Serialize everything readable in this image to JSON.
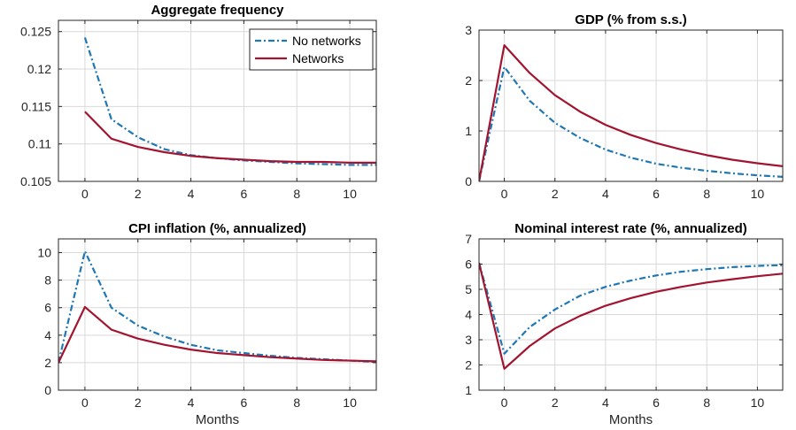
{
  "colors": {
    "no_networks": "#1f77b4",
    "networks": "#a2142f"
  },
  "legend": {
    "placement": "top-right of first panel",
    "entries": [
      {
        "label": "No networks",
        "color": "#1f77b4",
        "dash": "dash-dot"
      },
      {
        "label": "Networks",
        "color": "#a2142f",
        "dash": "solid"
      }
    ]
  },
  "chart_data": [
    {
      "type": "line",
      "title": "Aggregate frequency",
      "xlabel": "",
      "ylabel": "",
      "xlim": [
        -1,
        11
      ],
      "ylim": [
        0.105,
        0.1265
      ],
      "xticks": [
        0,
        2,
        4,
        6,
        8,
        10
      ],
      "yticks": [
        0.105,
        0.11,
        0.115,
        0.12,
        0.125
      ],
      "ytick_labels": [
        "0.105",
        "0.11",
        "0.115",
        "0.12",
        "0.125"
      ],
      "grid": true,
      "x": [
        0,
        1,
        2,
        3,
        4,
        5,
        6,
        7,
        8,
        9,
        10,
        11
      ],
      "series": [
        {
          "name": "No networks",
          "values": [
            0.1242,
            0.1133,
            0.1109,
            0.1093,
            0.1085,
            0.1081,
            0.1078,
            0.1076,
            0.1074,
            0.1073,
            0.1072,
            0.1072
          ]
        },
        {
          "name": "Networks",
          "values": [
            0.1143,
            0.1107,
            0.1096,
            0.1089,
            0.1084,
            0.1081,
            0.1079,
            0.1077,
            0.1076,
            0.1076,
            0.1075,
            0.1075
          ]
        }
      ]
    },
    {
      "type": "line",
      "title": "GDP (% from s.s.)",
      "xlabel": "",
      "ylabel": "",
      "xlim": [
        -1,
        11
      ],
      "ylim": [
        0,
        3
      ],
      "xticks": [
        0,
        2,
        4,
        6,
        8,
        10
      ],
      "yticks": [
        0,
        1,
        2,
        3
      ],
      "ytick_labels": [
        "0",
        "1",
        "2",
        "3"
      ],
      "grid": true,
      "x": [
        -1,
        0,
        1,
        2,
        3,
        4,
        5,
        6,
        7,
        8,
        9,
        10,
        11
      ],
      "series": [
        {
          "name": "No networks",
          "values": [
            0,
            2.27,
            1.6,
            1.16,
            0.86,
            0.63,
            0.47,
            0.35,
            0.27,
            0.21,
            0.16,
            0.12,
            0.09
          ]
        },
        {
          "name": "Networks",
          "values": [
            0,
            2.7,
            2.15,
            1.71,
            1.38,
            1.12,
            0.92,
            0.76,
            0.63,
            0.52,
            0.43,
            0.36,
            0.3
          ]
        }
      ]
    },
    {
      "type": "line",
      "title": "CPI inflation (%, annualized)",
      "xlabel": "Months",
      "ylabel": "",
      "xlim": [
        -1,
        11
      ],
      "ylim": [
        0,
        11
      ],
      "xticks": [
        0,
        2,
        4,
        6,
        8,
        10
      ],
      "yticks": [
        0,
        2,
        4,
        6,
        8,
        10
      ],
      "ytick_labels": [
        "0",
        "2",
        "4",
        "6",
        "8",
        "10"
      ],
      "grid": true,
      "x": [
        -1,
        0,
        1,
        2,
        3,
        4,
        5,
        6,
        7,
        8,
        9,
        10,
        11
      ],
      "series": [
        {
          "name": "No networks",
          "values": [
            2.0,
            10.1,
            6.0,
            4.7,
            3.9,
            3.3,
            2.9,
            2.7,
            2.5,
            2.35,
            2.25,
            2.15,
            2.05
          ]
        },
        {
          "name": "Networks",
          "values": [
            2.0,
            6.05,
            4.4,
            3.75,
            3.3,
            2.95,
            2.7,
            2.55,
            2.4,
            2.3,
            2.2,
            2.15,
            2.1
          ]
        }
      ]
    },
    {
      "type": "line",
      "title": "Nominal interest rate (%, annualized)",
      "xlabel": "Months",
      "ylabel": "",
      "xlim": [
        -1,
        11
      ],
      "ylim": [
        1,
        7
      ],
      "xticks": [
        0,
        2,
        4,
        6,
        8,
        10
      ],
      "yticks": [
        1,
        2,
        3,
        4,
        5,
        6,
        7
      ],
      "ytick_labels": [
        "1",
        "2",
        "3",
        "4",
        "5",
        "6",
        "7"
      ],
      "grid": true,
      "x": [
        -1,
        0,
        1,
        2,
        3,
        4,
        5,
        6,
        7,
        8,
        9,
        10,
        11
      ],
      "series": [
        {
          "name": "No networks",
          "values": [
            6.05,
            2.45,
            3.5,
            4.2,
            4.75,
            5.1,
            5.35,
            5.55,
            5.7,
            5.8,
            5.88,
            5.93,
            5.96
          ]
        },
        {
          "name": "Networks",
          "values": [
            6.05,
            1.85,
            2.75,
            3.45,
            3.95,
            4.35,
            4.65,
            4.9,
            5.1,
            5.27,
            5.4,
            5.52,
            5.62
          ]
        }
      ]
    }
  ]
}
